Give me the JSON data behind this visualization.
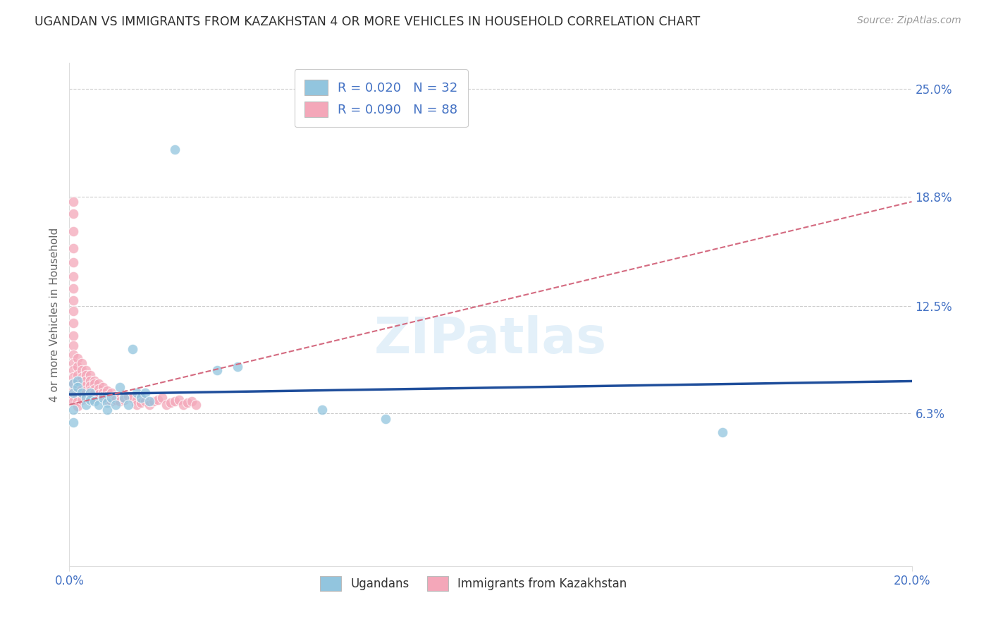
{
  "title": "UGANDAN VS IMMIGRANTS FROM KAZAKHSTAN 4 OR MORE VEHICLES IN HOUSEHOLD CORRELATION CHART",
  "source": "Source: ZipAtlas.com",
  "ylabel": "4 or more Vehicles in Household",
  "axis_label_color": "#4472c4",
  "ugandan_color": "#92c5de",
  "kazakh_color": "#f4a7b9",
  "ugandan_line_color": "#1f4e9b",
  "kazakh_line_color": "#d46a80",
  "grid_color": "#cccccc",
  "x_min": 0.0,
  "x_max": 0.2,
  "y_min": -0.025,
  "y_max": 0.265,
  "yticks": [
    0.063,
    0.125,
    0.188,
    0.25
  ],
  "ytick_labels": [
    "6.3%",
    "12.5%",
    "18.8%",
    "25.0%"
  ],
  "xticks": [
    0.0,
    0.2
  ],
  "xtick_labels": [
    "0.0%",
    "20.0%"
  ],
  "legend1_label": "R = 0.020   N = 32",
  "legend2_label": "R = 0.090   N = 88",
  "bottom_legend_labels": [
    "Ugandans",
    "Immigrants from Kazakhstan"
  ],
  "watermark": "ZIPatlas",
  "ugandan_points_x": [
    0.025,
    0.001,
    0.001,
    0.001,
    0.002,
    0.002,
    0.003,
    0.004,
    0.004,
    0.005,
    0.005,
    0.006,
    0.007,
    0.008,
    0.009,
    0.009,
    0.01,
    0.011,
    0.012,
    0.013,
    0.014,
    0.015,
    0.016,
    0.017,
    0.018,
    0.019,
    0.035,
    0.04,
    0.06,
    0.075,
    0.155,
    0.001
  ],
  "ugandan_points_y": [
    0.215,
    0.08,
    0.075,
    0.065,
    0.082,
    0.078,
    0.075,
    0.072,
    0.068,
    0.075,
    0.071,
    0.07,
    0.068,
    0.072,
    0.069,
    0.065,
    0.072,
    0.068,
    0.078,
    0.072,
    0.068,
    0.1,
    0.075,
    0.072,
    0.075,
    0.07,
    0.088,
    0.09,
    0.065,
    0.06,
    0.052,
    0.058
  ],
  "kazakh_points_x": [
    0.001,
    0.001,
    0.001,
    0.001,
    0.001,
    0.001,
    0.001,
    0.001,
    0.001,
    0.001,
    0.001,
    0.001,
    0.001,
    0.001,
    0.001,
    0.001,
    0.001,
    0.001,
    0.001,
    0.001,
    0.002,
    0.002,
    0.002,
    0.002,
    0.002,
    0.002,
    0.002,
    0.002,
    0.003,
    0.003,
    0.003,
    0.003,
    0.003,
    0.003,
    0.003,
    0.004,
    0.004,
    0.004,
    0.004,
    0.004,
    0.005,
    0.005,
    0.005,
    0.005,
    0.005,
    0.005,
    0.006,
    0.006,
    0.006,
    0.006,
    0.006,
    0.007,
    0.007,
    0.007,
    0.008,
    0.008,
    0.008,
    0.009,
    0.009,
    0.009,
    0.01,
    0.01,
    0.01,
    0.011,
    0.011,
    0.012,
    0.012,
    0.013,
    0.013,
    0.014,
    0.015,
    0.016,
    0.016,
    0.017,
    0.017,
    0.018,
    0.019,
    0.02,
    0.021,
    0.022,
    0.023,
    0.024,
    0.025,
    0.026,
    0.027,
    0.028,
    0.029,
    0.03
  ],
  "kazakh_points_y": [
    0.185,
    0.178,
    0.168,
    0.158,
    0.15,
    0.142,
    0.135,
    0.128,
    0.122,
    0.115,
    0.108,
    0.102,
    0.097,
    0.092,
    0.088,
    0.084,
    0.08,
    0.076,
    0.073,
    0.07,
    0.095,
    0.09,
    0.085,
    0.081,
    0.077,
    0.073,
    0.07,
    0.067,
    0.092,
    0.088,
    0.084,
    0.08,
    0.077,
    0.074,
    0.071,
    0.088,
    0.085,
    0.082,
    0.079,
    0.076,
    0.085,
    0.082,
    0.079,
    0.076,
    0.073,
    0.071,
    0.082,
    0.08,
    0.077,
    0.075,
    0.072,
    0.08,
    0.077,
    0.074,
    0.078,
    0.075,
    0.073,
    0.076,
    0.073,
    0.071,
    0.075,
    0.072,
    0.07,
    0.073,
    0.071,
    0.072,
    0.07,
    0.074,
    0.071,
    0.073,
    0.072,
    0.071,
    0.068,
    0.072,
    0.069,
    0.07,
    0.068,
    0.07,
    0.071,
    0.072,
    0.068,
    0.069,
    0.07,
    0.071,
    0.068,
    0.069,
    0.07,
    0.068
  ]
}
